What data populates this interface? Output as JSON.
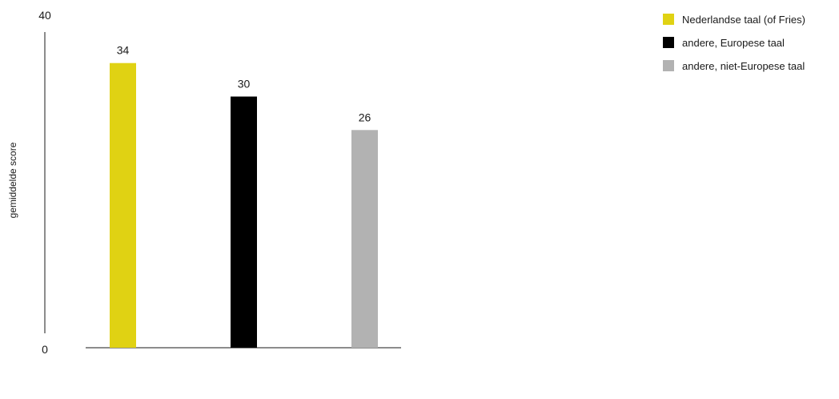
{
  "chart_data": {
    "type": "bar",
    "title": "",
    "xlabel": "",
    "ylabel": "gemiddelde score",
    "ylim": [
      0,
      40
    ],
    "yticks": [
      0,
      40
    ],
    "grid": false,
    "legend_position": "top-right",
    "categories": [
      "Nederlandse taal (of Fries)",
      "andere, Europese taal",
      "andere, niet-Europese taal"
    ],
    "values": [
      34,
      30,
      26
    ],
    "value_labels": [
      "34",
      "30",
      "26"
    ],
    "colors": [
      "#e0d213",
      "#000000",
      "#b2b2b2"
    ]
  },
  "legend": {
    "items": [
      {
        "label": "Nederlandse taal (of Fries)",
        "color": "#e0d213"
      },
      {
        "label": "andere, Europese taal",
        "color": "#000000"
      },
      {
        "label": "andere, niet-Europese taal",
        "color": "#b2b2b2"
      }
    ]
  }
}
